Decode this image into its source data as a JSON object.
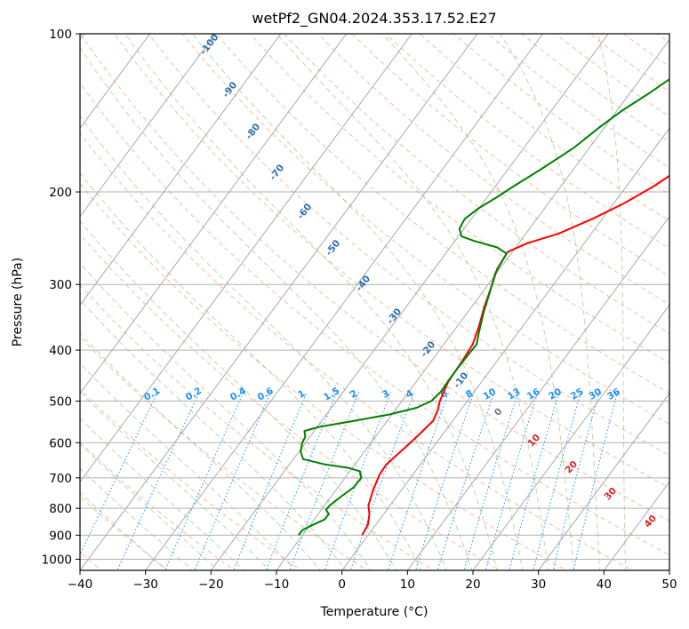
{
  "chart_data": {
    "type": "line",
    "subtype": "skew-t log-p diagram",
    "title": "wetPf2_GN04.2024.353.17.52.E27",
    "xlabel": "Temperature (°C)",
    "ylabel": "Pressure (hPa)",
    "xlim": [
      -40,
      50
    ],
    "ylim": [
      1050,
      100
    ],
    "y_scale": "log",
    "grid": true,
    "x_ticks": [
      -40,
      -30,
      -20,
      -10,
      0,
      10,
      20,
      30,
      40,
      50
    ],
    "y_ticks": [
      1000,
      900,
      800,
      700,
      600,
      500,
      400,
      300,
      200,
      100
    ],
    "series": [
      {
        "color": "#ff0000",
        "points": [
          [
            900,
            -0.9
          ],
          [
            860,
            -1.2
          ],
          [
            820,
            -2.2
          ],
          [
            790,
            -3.3
          ],
          [
            740,
            -4.3
          ],
          [
            690,
            -5.1
          ],
          [
            660,
            -5.2
          ],
          [
            620,
            -4.4
          ],
          [
            580,
            -3.6
          ],
          [
            545,
            -3.0
          ],
          [
            520,
            -3.5
          ],
          [
            500,
            -4.2
          ],
          [
            460,
            -5.1
          ],
          [
            420,
            -5.3
          ],
          [
            390,
            -5.6
          ],
          [
            360,
            -6.7
          ],
          [
            330,
            -8.1
          ],
          [
            300,
            -9.4
          ],
          [
            280,
            -10.4
          ],
          [
            260,
            -10.7
          ],
          [
            250,
            -8.6
          ],
          [
            240,
            -5.0
          ],
          [
            225,
            -1.5
          ],
          [
            210,
            1.6
          ],
          [
            195,
            4.2
          ],
          [
            180,
            6.3
          ],
          [
            165,
            8.2
          ],
          [
            150,
            10.2
          ],
          [
            140,
            11.6
          ],
          [
            130,
            14.4
          ],
          [
            120,
            19.0
          ],
          [
            110,
            24.0
          ],
          [
            100,
            27.5
          ]
        ]
      },
      {
        "color": "#008000",
        "points": [
          [
            900,
            -10.6
          ],
          [
            880,
            -10.6
          ],
          [
            860,
            -9.6
          ],
          [
            840,
            -8.4
          ],
          [
            820,
            -8.4
          ],
          [
            805,
            -9.3
          ],
          [
            790,
            -9.2
          ],
          [
            760,
            -8.5
          ],
          [
            730,
            -7.6
          ],
          [
            700,
            -7.5
          ],
          [
            680,
            -8.5
          ],
          [
            670,
            -10.6
          ],
          [
            660,
            -14.6
          ],
          [
            645,
            -18.5
          ],
          [
            625,
            -19.7
          ],
          [
            600,
            -20.5
          ],
          [
            585,
            -20.7
          ],
          [
            570,
            -21.5
          ],
          [
            560,
            -19.7
          ],
          [
            545,
            -15.0
          ],
          [
            530,
            -10.3
          ],
          [
            515,
            -7.0
          ],
          [
            500,
            -5.5
          ],
          [
            480,
            -5.1
          ],
          [
            455,
            -5.2
          ],
          [
            430,
            -5.2
          ],
          [
            410,
            -5.1
          ],
          [
            390,
            -5.0
          ],
          [
            370,
            -6.0
          ],
          [
            340,
            -7.5
          ],
          [
            310,
            -8.9
          ],
          [
            285,
            -10.2
          ],
          [
            262,
            -10.7
          ],
          [
            255,
            -12.8
          ],
          [
            248,
            -17.0
          ],
          [
            243,
            -19.5
          ],
          [
            235,
            -20.7
          ],
          [
            225,
            -21.0
          ],
          [
            215,
            -20.1
          ],
          [
            205,
            -18.6
          ],
          [
            195,
            -17.2
          ],
          [
            180,
            -14.8
          ],
          [
            165,
            -12.4
          ],
          [
            150,
            -10.7
          ],
          [
            140,
            -9.2
          ],
          [
            130,
            -7.1
          ],
          [
            120,
            -5.1
          ],
          [
            110,
            -3.3
          ],
          [
            100,
            -1.1
          ]
        ]
      }
    ],
    "dry_adiabat_labels": [
      "-100",
      "-90",
      "-80",
      "-70",
      "-60",
      "-50",
      "-40",
      "-30",
      "-20",
      "-10"
    ],
    "mixing_ratio_labels": [
      "0.1",
      "0.2",
      "0.4",
      "0.6",
      "1",
      "1.5",
      "2",
      "3",
      "4",
      "6",
      "8",
      "10",
      "13",
      "16",
      "20",
      "25",
      "30",
      "36"
    ],
    "moist_adiabat_labels": [
      "0",
      "10",
      "20",
      "30",
      "40"
    ]
  }
}
